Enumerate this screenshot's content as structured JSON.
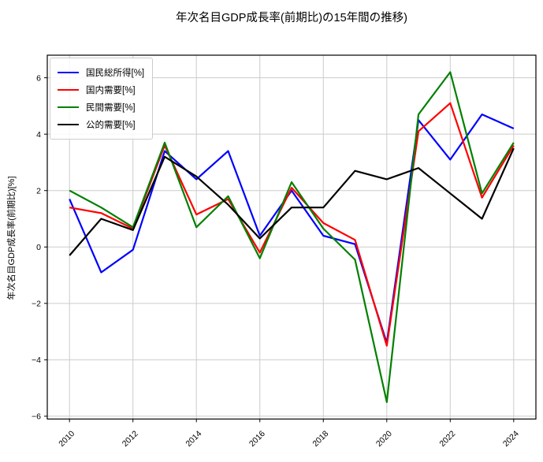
{
  "chart_data": {
    "type": "line",
    "title": "年次名目GDP成長率(前期比)の15年間の推移)",
    "ylabel": "年次名目GDP成長率(前期比)[%]",
    "xlabel": "",
    "x": [
      2010,
      2011,
      2012,
      2013,
      2014,
      2015,
      2016,
      2017,
      2018,
      2019,
      2020,
      2021,
      2022,
      2023,
      2024
    ],
    "xticks": [
      2010,
      2012,
      2014,
      2016,
      2018,
      2020,
      2022,
      2024
    ],
    "yticks": [
      -6,
      -4,
      -2,
      0,
      2,
      4,
      6
    ],
    "xlim": [
      2009.3,
      2024.7
    ],
    "ylim": [
      -6.1,
      6.8
    ],
    "grid": true,
    "grid_color": "#cccccc",
    "legend_position": "upper-left",
    "series": [
      {
        "name": "国民総所得[%]",
        "color": "#0000ff",
        "values": [
          1.7,
          -0.9,
          -0.1,
          3.4,
          2.4,
          3.4,
          0.4,
          2.0,
          0.4,
          0.1,
          -3.4,
          4.5,
          3.1,
          4.7,
          4.2
        ]
      },
      {
        "name": "国内需要[%]",
        "color": "#ff0000",
        "values": [
          1.4,
          1.2,
          0.65,
          3.6,
          1.15,
          1.7,
          -0.2,
          2.1,
          0.85,
          0.25,
          -3.5,
          4.1,
          5.1,
          1.75,
          3.6
        ]
      },
      {
        "name": "民間需要[%]",
        "color": "#008000",
        "values": [
          2.0,
          1.4,
          0.7,
          3.7,
          0.7,
          1.8,
          -0.4,
          2.3,
          0.65,
          -0.45,
          -5.5,
          4.7,
          6.2,
          1.9,
          3.7
        ]
      },
      {
        "name": "公的需要[%]",
        "color": "#000000",
        "values": [
          -0.3,
          1.0,
          0.6,
          3.2,
          2.5,
          1.5,
          0.3,
          1.4,
          1.4,
          2.7,
          2.4,
          2.8,
          1.9,
          1.0,
          3.5
        ]
      }
    ]
  }
}
